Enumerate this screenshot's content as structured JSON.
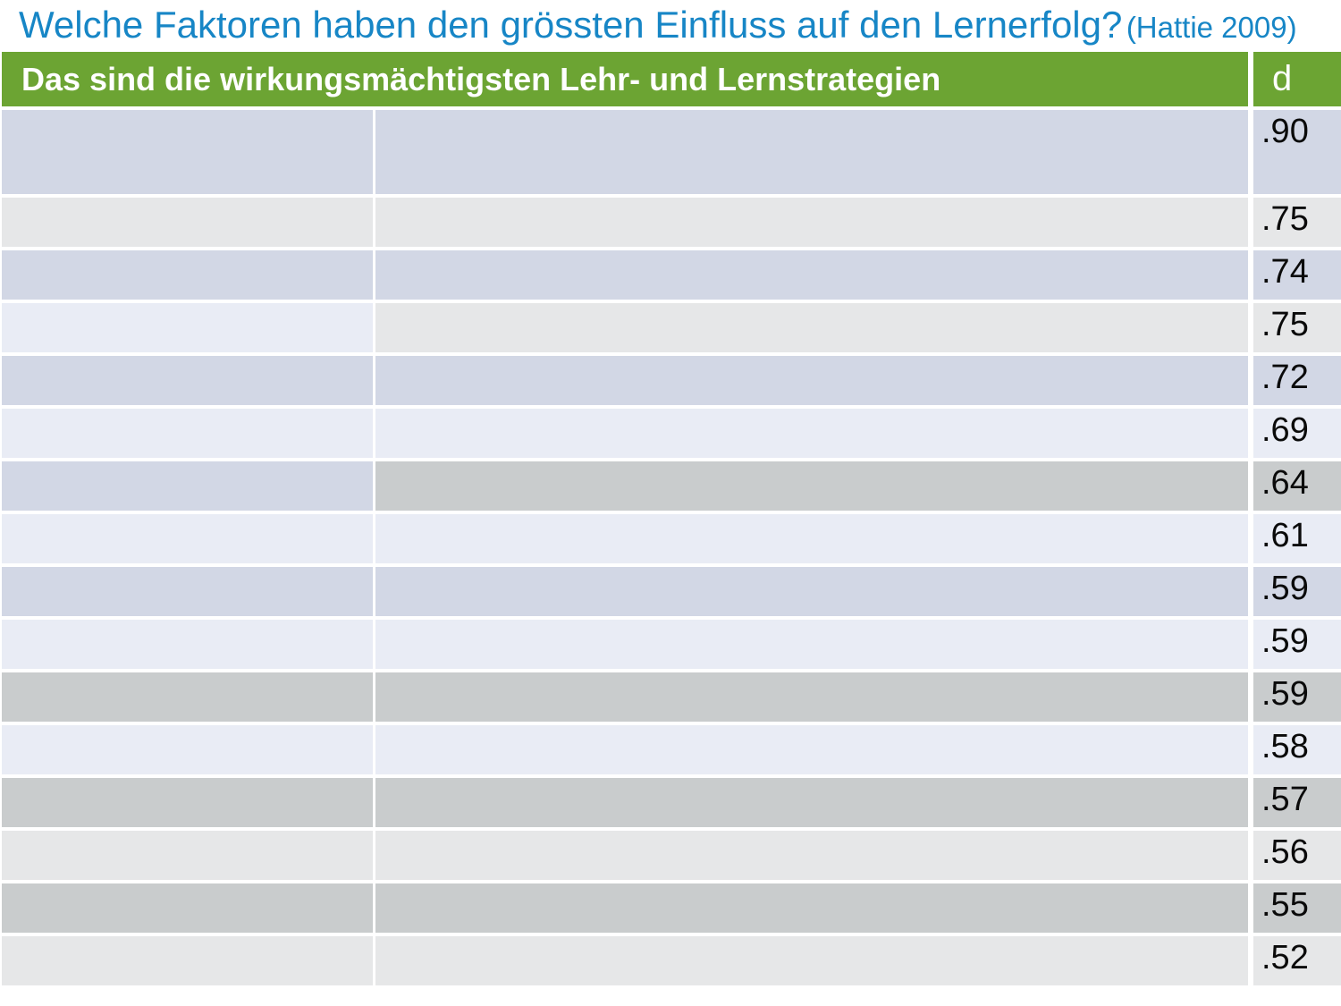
{
  "slide": {
    "title": "Welche Faktoren haben den grössten Einfluss auf den Lernerfolg?",
    "title_source": "(Hattie 2009)"
  },
  "colors": {
    "title_blue": "#1786C6",
    "header_green": "#6CA433",
    "header_text": "#FFFFFF",
    "value_text": "#0A0A0A",
    "band_lavender": "#D2D7E5",
    "band_lightblue": "#E9ECF5",
    "band_lightgray": "#E6E7E8",
    "band_gray": "#C9CCCD"
  },
  "table": {
    "header": {
      "label": "Das sind die wirkungsmächtigsten Lehr- und Lernstrategien",
      "d_label": "d"
    },
    "rows": [
      {
        "d": ".90",
        "tall": true,
        "cells": [
          "lavender",
          "lavender",
          "lavender"
        ]
      },
      {
        "d": ".75",
        "tall": false,
        "cells": [
          "lightgray",
          "lightgray",
          "lightgray"
        ]
      },
      {
        "d": ".74",
        "tall": false,
        "cells": [
          "lavender",
          "lavender",
          "lavender"
        ]
      },
      {
        "d": ".75",
        "tall": false,
        "cells": [
          "lightblue",
          "lightgray",
          "lightgray"
        ]
      },
      {
        "d": ".72",
        "tall": false,
        "cells": [
          "lavender",
          "lavender",
          "lavender"
        ]
      },
      {
        "d": ".69",
        "tall": false,
        "cells": [
          "lightblue",
          "lightblue",
          "lightblue"
        ]
      },
      {
        "d": ".64",
        "tall": false,
        "cells": [
          "lavender",
          "gray",
          "gray"
        ]
      },
      {
        "d": ".61",
        "tall": false,
        "cells": [
          "lightblue",
          "lightblue",
          "lightblue"
        ]
      },
      {
        "d": ".59",
        "tall": false,
        "cells": [
          "lavender",
          "lavender",
          "lavender"
        ]
      },
      {
        "d": ".59",
        "tall": false,
        "cells": [
          "lightblue",
          "lightblue",
          "lightblue"
        ]
      },
      {
        "d": ".59",
        "tall": false,
        "cells": [
          "gray",
          "gray",
          "gray"
        ]
      },
      {
        "d": ".58",
        "tall": false,
        "cells": [
          "lightblue",
          "lightblue",
          "lightblue"
        ]
      },
      {
        "d": ".57",
        "tall": false,
        "cells": [
          "gray",
          "gray",
          "gray"
        ]
      },
      {
        "d": ".56",
        "tall": false,
        "cells": [
          "lightgray",
          "lightgray",
          "lightgray"
        ]
      },
      {
        "d": ".55",
        "tall": false,
        "cells": [
          "gray",
          "gray",
          "gray"
        ]
      },
      {
        "d": ".52",
        "tall": false,
        "cells": [
          "lightgray",
          "lightgray",
          "lightgray"
        ]
      }
    ]
  }
}
